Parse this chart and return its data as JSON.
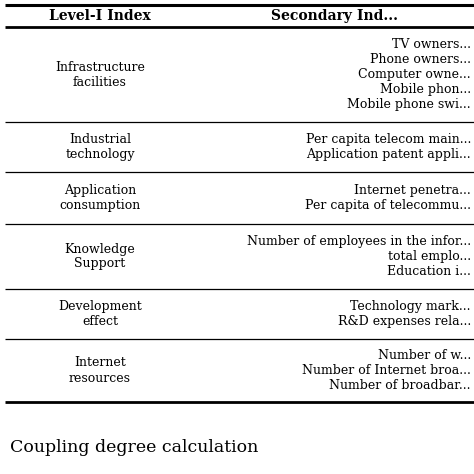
{
  "col1_header": "Level-I Index",
  "col2_header": "Secondary Ind...",
  "rows": [
    {
      "col1": "Infrastructure\nfacilities",
      "col2": "TV owners...\nPhone owners...\nComputer owne...\nMobile phon...\nMobile phone swi..."
    },
    {
      "col1": "Industrial\ntechnology",
      "col2": "Per capita telecom main...\nApplication patent appli..."
    },
    {
      "col1": "Application\nconsumption",
      "col2": "Internet penetra...\nPer capita of telecommu..."
    },
    {
      "col1": "Knowledge\nSupport",
      "col2": "Number of employees in the infor...\ntotal emplo...\nEducation i..."
    },
    {
      "col1": "Development\neffect",
      "col2": "Technology mark...\nR&D expenses rela..."
    },
    {
      "col1": "Internet\nresources",
      "col2": "Number of w...\nNumber of Internet broa...\nNumber of broadbar..."
    }
  ],
  "footer_text": "Coupling degree calculation",
  "bg_color": "#ffffff",
  "text_color": "#000000",
  "line_color": "#000000",
  "font_size": 9.0,
  "header_font_size": 10.0,
  "footer_font_size": 12.5
}
